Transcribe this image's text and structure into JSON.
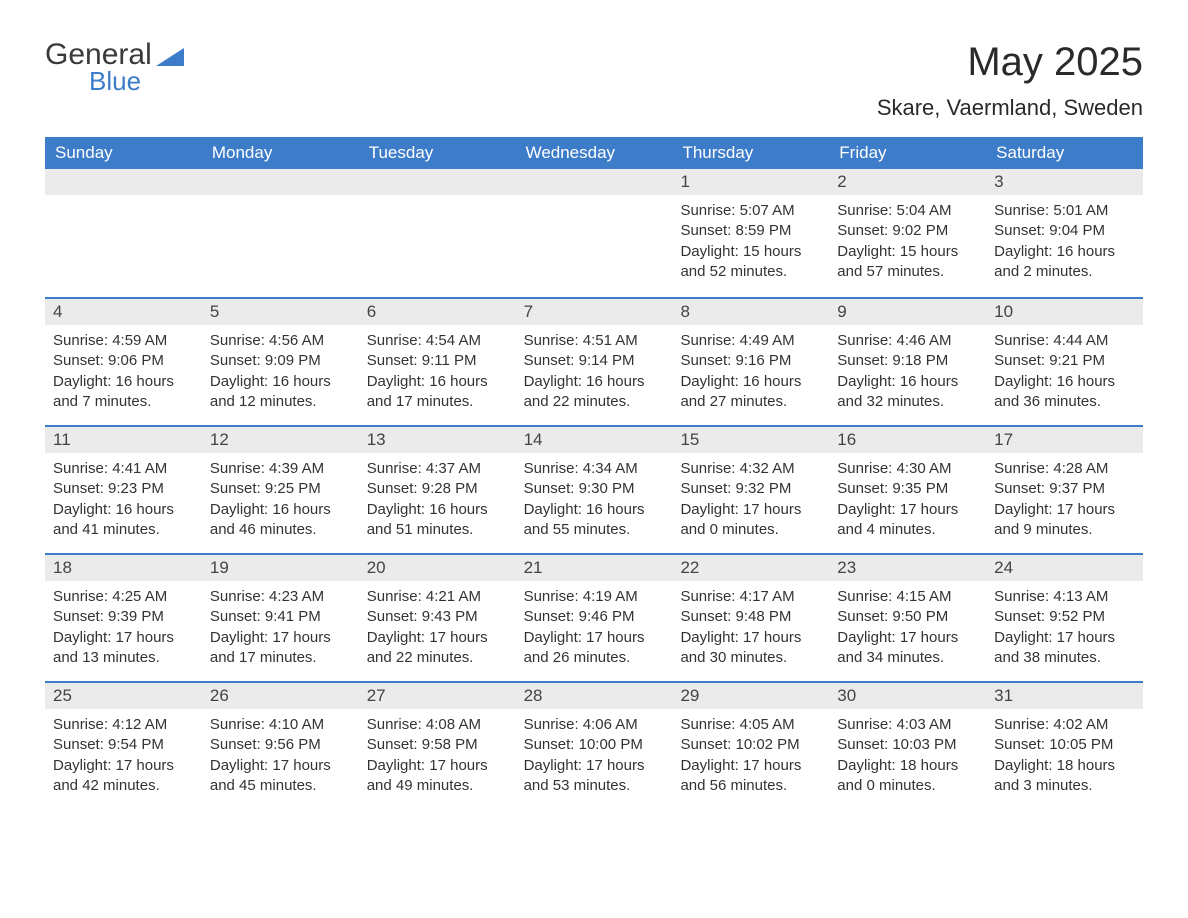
{
  "logo": {
    "word1": "General",
    "word2": "Blue"
  },
  "title": "May 2025",
  "location": "Skare, Vaermland, Sweden",
  "colors": {
    "header_bg": "#3d7cc9",
    "header_text": "#ffffff",
    "daynum_bg": "#ebebeb",
    "body_text": "#333333",
    "rule": "#3d7cc9",
    "page_bg": "#ffffff"
  },
  "typography": {
    "title_fontsize": 40,
    "location_fontsize": 22,
    "dow_fontsize": 17,
    "daynum_fontsize": 17,
    "body_fontsize": 15
  },
  "dow": [
    "Sunday",
    "Monday",
    "Tuesday",
    "Wednesday",
    "Thursday",
    "Friday",
    "Saturday"
  ],
  "weeks": [
    [
      {
        "n": "",
        "sunrise": "",
        "sunset": "",
        "daylight": ""
      },
      {
        "n": "",
        "sunrise": "",
        "sunset": "",
        "daylight": ""
      },
      {
        "n": "",
        "sunrise": "",
        "sunset": "",
        "daylight": ""
      },
      {
        "n": "",
        "sunrise": "",
        "sunset": "",
        "daylight": ""
      },
      {
        "n": "1",
        "sunrise": "Sunrise: 5:07 AM",
        "sunset": "Sunset: 8:59 PM",
        "daylight": "Daylight: 15 hours and 52 minutes."
      },
      {
        "n": "2",
        "sunrise": "Sunrise: 5:04 AM",
        "sunset": "Sunset: 9:02 PM",
        "daylight": "Daylight: 15 hours and 57 minutes."
      },
      {
        "n": "3",
        "sunrise": "Sunrise: 5:01 AM",
        "sunset": "Sunset: 9:04 PM",
        "daylight": "Daylight: 16 hours and 2 minutes."
      }
    ],
    [
      {
        "n": "4",
        "sunrise": "Sunrise: 4:59 AM",
        "sunset": "Sunset: 9:06 PM",
        "daylight": "Daylight: 16 hours and 7 minutes."
      },
      {
        "n": "5",
        "sunrise": "Sunrise: 4:56 AM",
        "sunset": "Sunset: 9:09 PM",
        "daylight": "Daylight: 16 hours and 12 minutes."
      },
      {
        "n": "6",
        "sunrise": "Sunrise: 4:54 AM",
        "sunset": "Sunset: 9:11 PM",
        "daylight": "Daylight: 16 hours and 17 minutes."
      },
      {
        "n": "7",
        "sunrise": "Sunrise: 4:51 AM",
        "sunset": "Sunset: 9:14 PM",
        "daylight": "Daylight: 16 hours and 22 minutes."
      },
      {
        "n": "8",
        "sunrise": "Sunrise: 4:49 AM",
        "sunset": "Sunset: 9:16 PM",
        "daylight": "Daylight: 16 hours and 27 minutes."
      },
      {
        "n": "9",
        "sunrise": "Sunrise: 4:46 AM",
        "sunset": "Sunset: 9:18 PM",
        "daylight": "Daylight: 16 hours and 32 minutes."
      },
      {
        "n": "10",
        "sunrise": "Sunrise: 4:44 AM",
        "sunset": "Sunset: 9:21 PM",
        "daylight": "Daylight: 16 hours and 36 minutes."
      }
    ],
    [
      {
        "n": "11",
        "sunrise": "Sunrise: 4:41 AM",
        "sunset": "Sunset: 9:23 PM",
        "daylight": "Daylight: 16 hours and 41 minutes."
      },
      {
        "n": "12",
        "sunrise": "Sunrise: 4:39 AM",
        "sunset": "Sunset: 9:25 PM",
        "daylight": "Daylight: 16 hours and 46 minutes."
      },
      {
        "n": "13",
        "sunrise": "Sunrise: 4:37 AM",
        "sunset": "Sunset: 9:28 PM",
        "daylight": "Daylight: 16 hours and 51 minutes."
      },
      {
        "n": "14",
        "sunrise": "Sunrise: 4:34 AM",
        "sunset": "Sunset: 9:30 PM",
        "daylight": "Daylight: 16 hours and 55 minutes."
      },
      {
        "n": "15",
        "sunrise": "Sunrise: 4:32 AM",
        "sunset": "Sunset: 9:32 PM",
        "daylight": "Daylight: 17 hours and 0 minutes."
      },
      {
        "n": "16",
        "sunrise": "Sunrise: 4:30 AM",
        "sunset": "Sunset: 9:35 PM",
        "daylight": "Daylight: 17 hours and 4 minutes."
      },
      {
        "n": "17",
        "sunrise": "Sunrise: 4:28 AM",
        "sunset": "Sunset: 9:37 PM",
        "daylight": "Daylight: 17 hours and 9 minutes."
      }
    ],
    [
      {
        "n": "18",
        "sunrise": "Sunrise: 4:25 AM",
        "sunset": "Sunset: 9:39 PM",
        "daylight": "Daylight: 17 hours and 13 minutes."
      },
      {
        "n": "19",
        "sunrise": "Sunrise: 4:23 AM",
        "sunset": "Sunset: 9:41 PM",
        "daylight": "Daylight: 17 hours and 17 minutes."
      },
      {
        "n": "20",
        "sunrise": "Sunrise: 4:21 AM",
        "sunset": "Sunset: 9:43 PM",
        "daylight": "Daylight: 17 hours and 22 minutes."
      },
      {
        "n": "21",
        "sunrise": "Sunrise: 4:19 AM",
        "sunset": "Sunset: 9:46 PM",
        "daylight": "Daylight: 17 hours and 26 minutes."
      },
      {
        "n": "22",
        "sunrise": "Sunrise: 4:17 AM",
        "sunset": "Sunset: 9:48 PM",
        "daylight": "Daylight: 17 hours and 30 minutes."
      },
      {
        "n": "23",
        "sunrise": "Sunrise: 4:15 AM",
        "sunset": "Sunset: 9:50 PM",
        "daylight": "Daylight: 17 hours and 34 minutes."
      },
      {
        "n": "24",
        "sunrise": "Sunrise: 4:13 AM",
        "sunset": "Sunset: 9:52 PM",
        "daylight": "Daylight: 17 hours and 38 minutes."
      }
    ],
    [
      {
        "n": "25",
        "sunrise": "Sunrise: 4:12 AM",
        "sunset": "Sunset: 9:54 PM",
        "daylight": "Daylight: 17 hours and 42 minutes."
      },
      {
        "n": "26",
        "sunrise": "Sunrise: 4:10 AM",
        "sunset": "Sunset: 9:56 PM",
        "daylight": "Daylight: 17 hours and 45 minutes."
      },
      {
        "n": "27",
        "sunrise": "Sunrise: 4:08 AM",
        "sunset": "Sunset: 9:58 PM",
        "daylight": "Daylight: 17 hours and 49 minutes."
      },
      {
        "n": "28",
        "sunrise": "Sunrise: 4:06 AM",
        "sunset": "Sunset: 10:00 PM",
        "daylight": "Daylight: 17 hours and 53 minutes."
      },
      {
        "n": "29",
        "sunrise": "Sunrise: 4:05 AM",
        "sunset": "Sunset: 10:02 PM",
        "daylight": "Daylight: 17 hours and 56 minutes."
      },
      {
        "n": "30",
        "sunrise": "Sunrise: 4:03 AM",
        "sunset": "Sunset: 10:03 PM",
        "daylight": "Daylight: 18 hours and 0 minutes."
      },
      {
        "n": "31",
        "sunrise": "Sunrise: 4:02 AM",
        "sunset": "Sunset: 10:05 PM",
        "daylight": "Daylight: 18 hours and 3 minutes."
      }
    ]
  ]
}
